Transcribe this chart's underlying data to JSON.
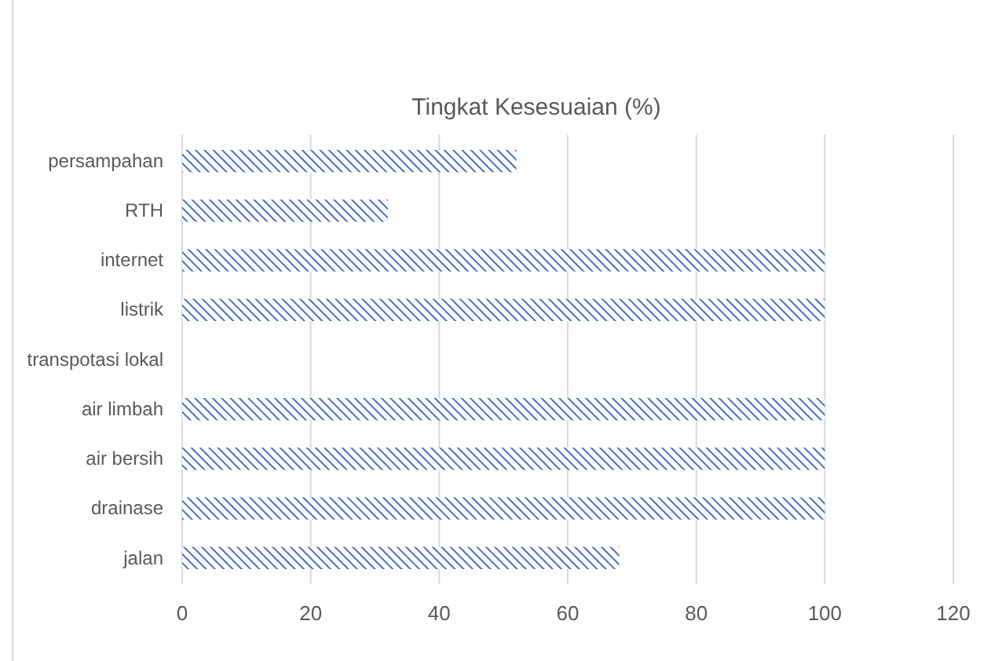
{
  "chart_data": {
    "type": "bar",
    "orientation": "horizontal",
    "title": "Tingkat Kesesuaian (%)",
    "categories": [
      "persampahan",
      "RTH",
      "internet",
      "listrik",
      "transpotasi lokal",
      "air limbah",
      "air bersih",
      "drainase",
      "jalan"
    ],
    "values": [
      52,
      32,
      100,
      100,
      0,
      100,
      100,
      100,
      68
    ],
    "color": "#4472c4",
    "xlim": [
      0,
      120
    ],
    "xticks": [
      0,
      20,
      40,
      60,
      80,
      100,
      120
    ],
    "grid": "x"
  }
}
